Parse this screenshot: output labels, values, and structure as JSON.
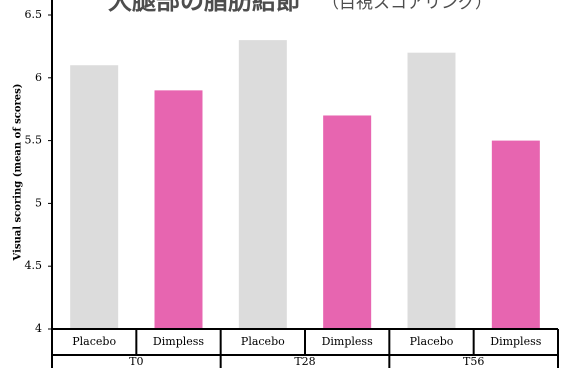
{
  "chart_data": {
    "type": "grouped-bar",
    "title": "大腿部の脂肪結節",
    "subtitle": "（目視スコアリング）",
    "y_label": "Visual scoring (mean of scores)",
    "groups": [
      "T0",
      "T28",
      "T56"
    ],
    "series": [
      {
        "name": "Placebo",
        "color": "#dcdcdc",
        "values": [
          6.1,
          6.3,
          6.2
        ]
      },
      {
        "name": "Dimpless",
        "color": "#e765b0",
        "values": [
          5.9,
          5.7,
          5.5
        ]
      }
    ],
    "ylim": [
      4,
      6.5
    ],
    "yticks": [
      4,
      4.5,
      5,
      5.5,
      6,
      6.5
    ]
  }
}
